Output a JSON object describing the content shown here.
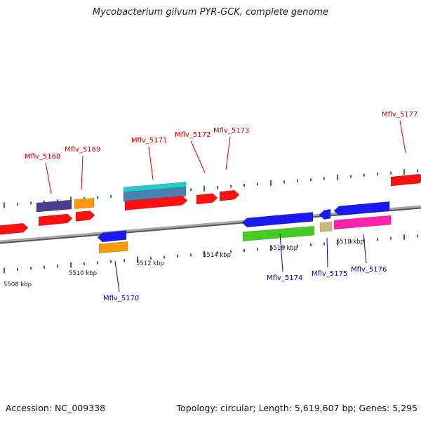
{
  "title": "Mycobacterium gilvum PYR-GCK, complete genome",
  "footer": {
    "accession": "Accession: NC_009338",
    "summary": "Topology: circular; Length: 5,619,607 bp; Genes: 5,295"
  },
  "colors": {
    "red": "#ff1111",
    "blue": "#1a1aee",
    "orange": "#ff9900",
    "purple": "#4a3f8f",
    "cyan": "#22cccc",
    "steel": "#4a80b0",
    "green": "#44cc22",
    "tan": "#c8bb78",
    "pink": "#ff22aa",
    "tick": "#2d7f2d",
    "label_red": "#dd0000",
    "label_blue": "#0000bb"
  },
  "scale_labels": [
    "5508 kbp",
    "5510 kbp",
    "5512 kbp",
    "5514 kbp",
    "5516 kbp",
    "5518 kbp"
  ],
  "gene_labels": [
    {
      "text": "Mflv_5168",
      "strand": "top"
    },
    {
      "text": "Mflv_5169",
      "strand": "top"
    },
    {
      "text": "Mflv_5171",
      "strand": "top"
    },
    {
      "text": "Mflv_5172",
      "strand": "top"
    },
    {
      "text": "Mflv_5173",
      "strand": "top"
    },
    {
      "text": "Mflv_5177",
      "strand": "top"
    },
    {
      "text": "Mflv_5170",
      "strand": "bottom"
    },
    {
      "text": "Mflv_5174",
      "strand": "bottom"
    },
    {
      "text": "Mflv_5175",
      "strand": "bottom"
    },
    {
      "text": "Mflv_5176",
      "strand": "bottom"
    }
  ]
}
